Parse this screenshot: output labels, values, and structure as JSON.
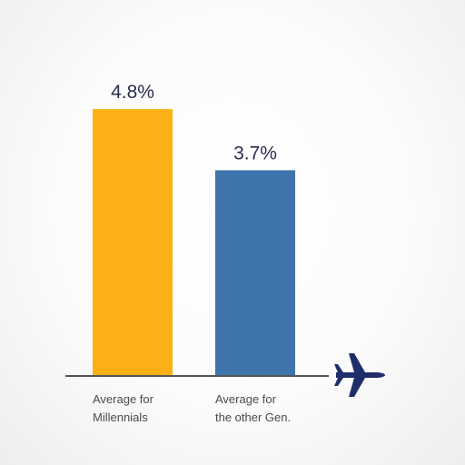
{
  "chart_data": {
    "type": "bar",
    "categories": [
      [
        "Average for",
        "Millennials"
      ],
      [
        "Average for",
        "the other Gen."
      ]
    ],
    "values": [
      4.8,
      3.7
    ],
    "value_labels": [
      "4.8%",
      "3.7%"
    ],
    "ylim": [
      0,
      6.5
    ],
    "grid": false,
    "title": "",
    "xlabel": "",
    "ylabel": ""
  },
  "colors": {
    "bars": [
      "#fbb116",
      "#3e74ab"
    ],
    "axis": "#555555",
    "airplane": "#1f2d6b"
  },
  "icons": {
    "axis_end": "airplane-icon"
  }
}
